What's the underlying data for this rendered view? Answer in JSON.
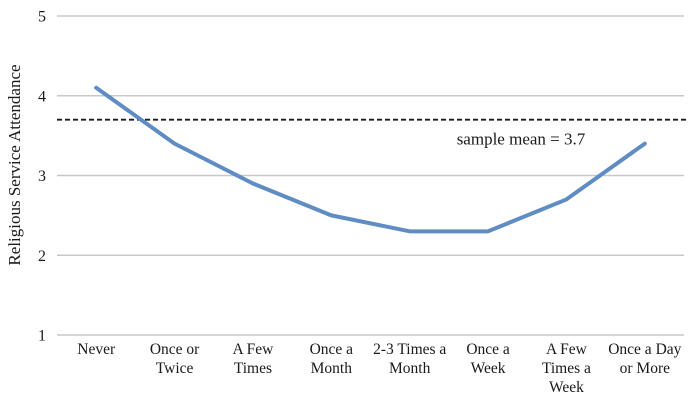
{
  "chart_data": {
    "type": "line",
    "title": "",
    "xlabel": "",
    "ylabel": "Religious Service Attendance",
    "categories": [
      "Never",
      "Once or Twice",
      "A Few Times",
      "Once a Month",
      "2-3 Times a Month",
      "Once a Week",
      "A Few Times a Week",
      "Once a Day or More"
    ],
    "category_label_lines": [
      [
        "Never"
      ],
      [
        "Once or",
        "Twice"
      ],
      [
        "A Few",
        "Times"
      ],
      [
        "Once a",
        "Month"
      ],
      [
        "2-3 Times a",
        "Month"
      ],
      [
        "Once a",
        "Week"
      ],
      [
        "A Few",
        "Times a",
        "Week"
      ],
      [
        "Once a Day",
        "or More"
      ]
    ],
    "series": [
      {
        "name": "Religious Service Attendance",
        "values": [
          4.1,
          3.4,
          2.9,
          2.5,
          2.3,
          2.3,
          2.7,
          3.4
        ]
      }
    ],
    "ylim": [
      1,
      5
    ],
    "yticks": [
      1,
      2,
      3,
      4,
      5
    ],
    "grid": true,
    "legend": false,
    "reference_line": {
      "value": 3.7,
      "label": "sample mean = 3.7",
      "style": "dashed"
    },
    "colors": {
      "line": "#5f8dc3",
      "gridline": "#c8c8c8",
      "reference_line": "#1a1a1a",
      "text": "#1a1a1a",
      "background": "#ffffff"
    }
  }
}
